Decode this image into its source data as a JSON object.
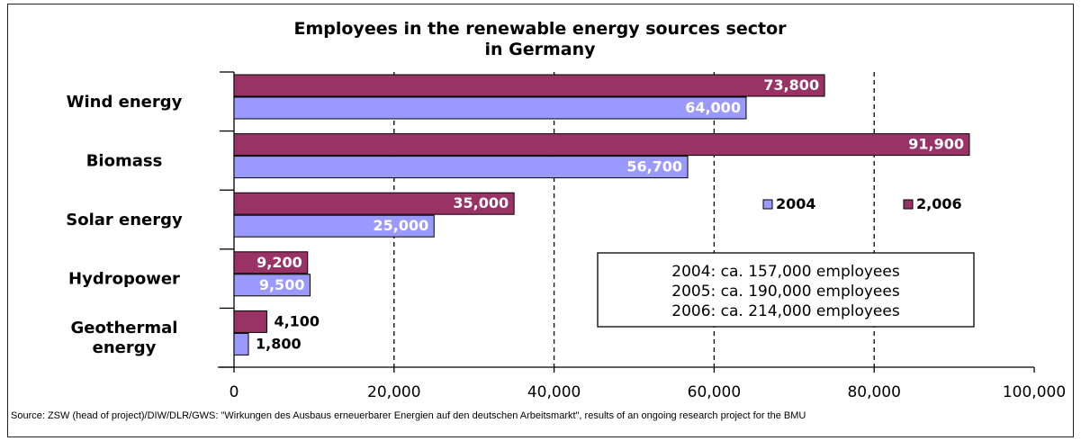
{
  "chart_data": {
    "type": "bar",
    "orientation": "horizontal",
    "title_lines": [
      "Employees in the renewable energy sources sector",
      "in Germany"
    ],
    "categories": [
      "Wind energy",
      "Biomass",
      "Solar energy",
      "Hydropower",
      "Geothermal energy"
    ],
    "category_label_lines": [
      [
        "Wind energy"
      ],
      [
        "Biomass"
      ],
      [
        "Solar energy"
      ],
      [
        "Hydropower"
      ],
      [
        "Geothermal",
        "energy"
      ]
    ],
    "series": [
      {
        "name": "2,006",
        "color": "#993366",
        "values": [
          73800,
          91900,
          35000,
          9200,
          4100
        ],
        "labels": [
          "73,800",
          "91,900",
          "35,000",
          "9,200",
          "4,100"
        ]
      },
      {
        "name": "2004",
        "color": "#9999ff",
        "values": [
          64000,
          56700,
          25000,
          9500,
          1800
        ],
        "labels": [
          "64,000",
          "56,700",
          "25,000",
          "9,500",
          "1,800"
        ]
      }
    ],
    "legend_order": [
      "2004",
      "2,006"
    ],
    "legend_position": "right",
    "xlim": [
      0,
      100000
    ],
    "x_ticks": [
      0,
      20000,
      40000,
      60000,
      80000,
      100000
    ],
    "x_tick_labels": [
      "0",
      "20,000",
      "40,000",
      "60,000",
      "80,000",
      "100,000"
    ],
    "gridlines": "vertical dashed",
    "annotation_lines": [
      "2004: ca. 157,000 employees",
      "2005: ca. 190,000 employees",
      "2006: ca. 214,000 employees"
    ]
  },
  "source_note": "Source: ZSW (head of project)/DIW/DLR/GWS: \"Wirkungen des Ausbaus erneuerbarer Energien auf den deutschen Arbeitsmarkt\", results of an ongoing research project for the BMU"
}
